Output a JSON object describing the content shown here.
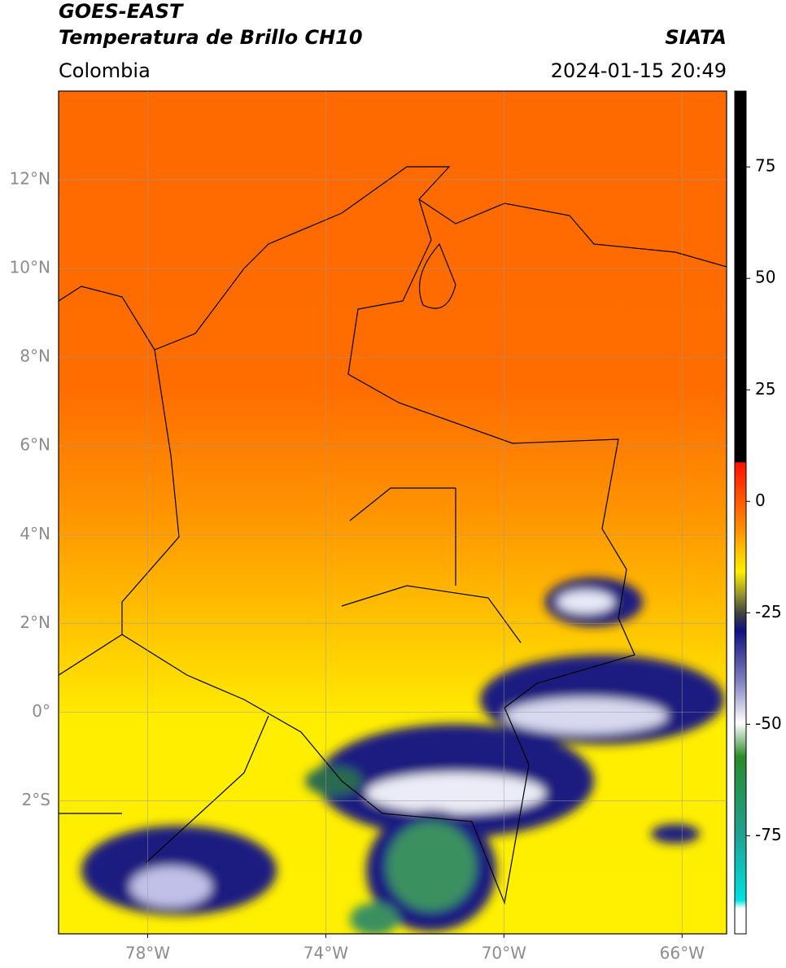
{
  "header": {
    "title": "GOES-EAST",
    "subtitle": "Temperatura de Brillo CH10",
    "region": "Colombia",
    "source": "SIATA",
    "datetime": "2024-01-15 20:49"
  },
  "map": {
    "lon_range": [
      -80,
      -65
    ],
    "lat_range": [
      -5,
      14
    ],
    "lat_ticks": [
      {
        "value": 12,
        "label": "12°N"
      },
      {
        "value": 10,
        "label": "10°N"
      },
      {
        "value": 8,
        "label": "8°N"
      },
      {
        "value": 6,
        "label": "6°N"
      },
      {
        "value": 4,
        "label": "4°N"
      },
      {
        "value": 2,
        "label": "2°N"
      },
      {
        "value": 0,
        "label": "0°"
      },
      {
        "value": -2,
        "label": "2°S"
      }
    ],
    "lon_ticks": [
      {
        "value": -78,
        "label": "78°W"
      },
      {
        "value": -74,
        "label": "74°W"
      },
      {
        "value": -70,
        "label": "70°W"
      },
      {
        "value": -66,
        "label": "66°W"
      }
    ]
  },
  "colorbar": {
    "range": [
      -97,
      92
    ],
    "ticks": [
      75,
      50,
      25,
      0,
      -25,
      -50,
      -75
    ]
  }
}
